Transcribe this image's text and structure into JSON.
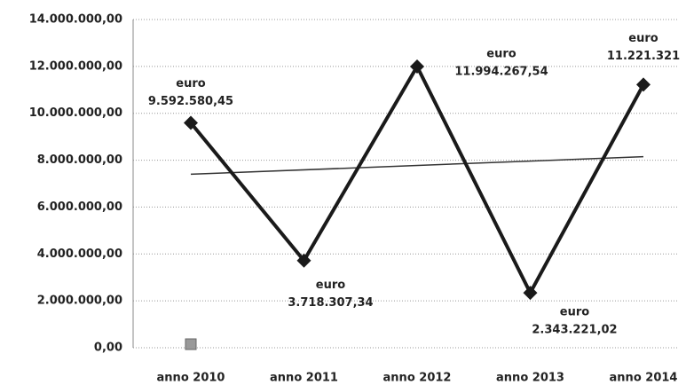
{
  "chart_data": {
    "type": "line",
    "categories": [
      "anno 2010",
      "anno 2011",
      "anno 2012",
      "anno 2013",
      "anno 2014"
    ],
    "series": [
      {
        "color": "#1a1a1a",
        "values": [
          9592580.45,
          3718307.34,
          11994267.54,
          2343221.02,
          11221321
        ],
        "value_labels": [
          "9.592.580,45",
          "3.718.307,34",
          "11.994.267,54",
          "2.343.221,02",
          "11.221.321"
        ]
      }
    ],
    "label_prefix": "euro",
    "trend_values": [
      7400000,
      8150000
    ],
    "ylim": [
      0,
      14000000
    ],
    "yticks": [
      {
        "value": 0,
        "label": "0,00"
      },
      {
        "value": 2000000,
        "label": "2.000.000,00"
      },
      {
        "value": 4000000,
        "label": "4.000.000,00"
      },
      {
        "value": 6000000,
        "label": "6.000.000,00"
      },
      {
        "value": 8000000,
        "label": "8.000.000,00"
      },
      {
        "value": 10000000,
        "label": "10.000.000,00"
      },
      {
        "value": 12000000,
        "label": "12.000.000,00"
      },
      {
        "value": 14000000,
        "label": "14.000.000,00"
      }
    ],
    "grid": true
  }
}
